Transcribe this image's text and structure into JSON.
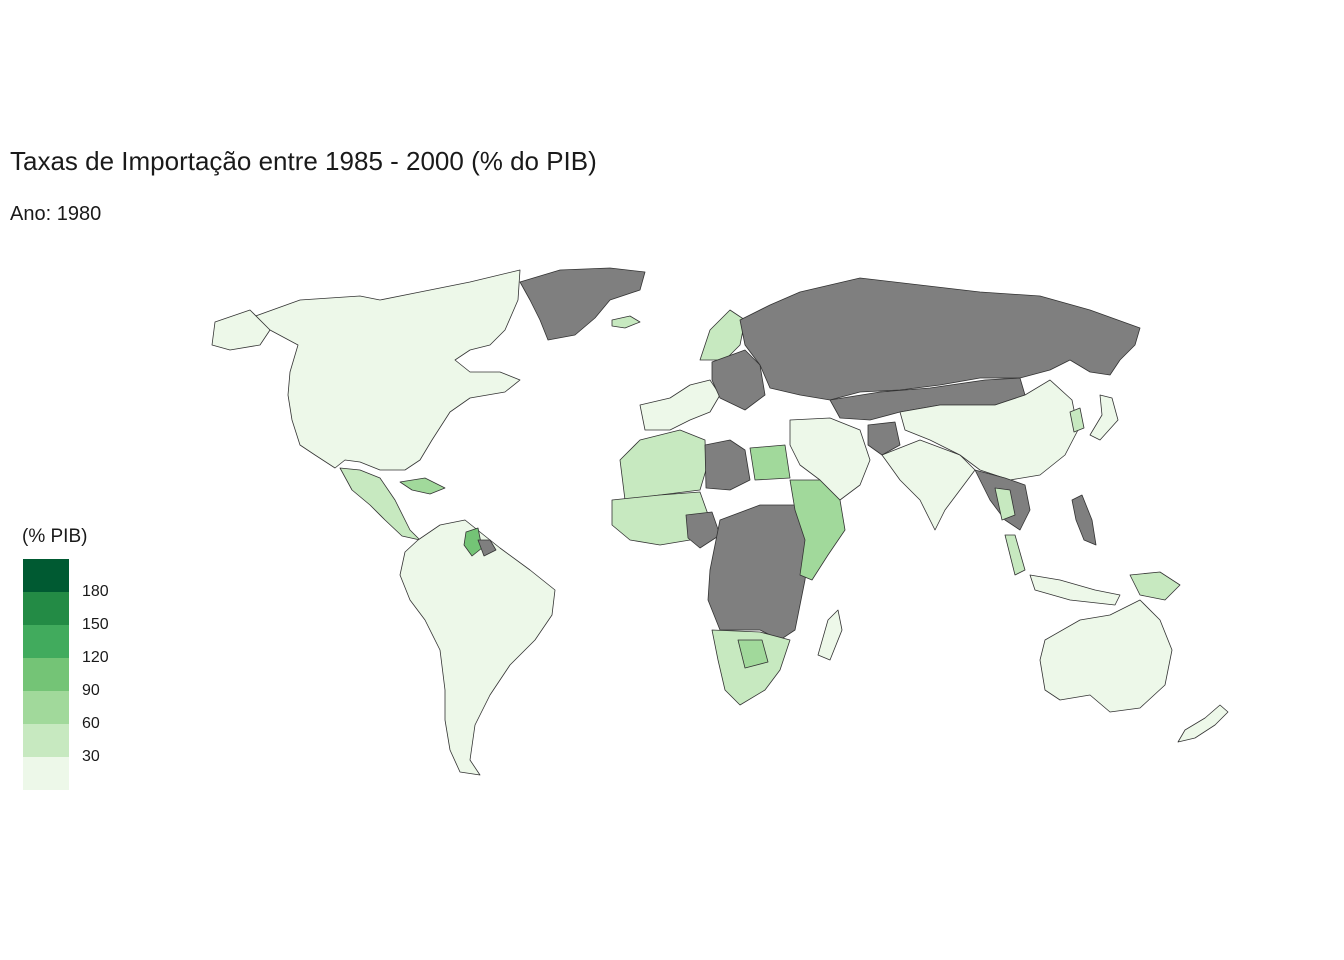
{
  "title": "Taxas de Importação entre 1985 - 2000 (% do PIB)",
  "subtitle": "Ano: 1980",
  "legend": {
    "title": "(% PIB)",
    "bins": [
      {
        "min": 0,
        "max": 30,
        "color": "#edf8e9"
      },
      {
        "min": 30,
        "max": 60,
        "color": "#c7e9c0"
      },
      {
        "min": 60,
        "max": 90,
        "color": "#a1d99b"
      },
      {
        "min": 90,
        "max": 120,
        "color": "#74c476"
      },
      {
        "min": 120,
        "max": 150,
        "color": "#41ab5d"
      },
      {
        "min": 150,
        "max": 180,
        "color": "#238b45"
      },
      {
        "min": 180,
        "max": 210,
        "color": "#005a32"
      }
    ],
    "labels": [
      "180",
      "150",
      "120",
      "90",
      "60",
      "30"
    ],
    "na_color": "#7f7f7f"
  },
  "map_data": {
    "type": "choropleth",
    "variable": "imports_pct_gdp",
    "regions": [
      {
        "id": "north-america",
        "bin": 0
      },
      {
        "id": "alaska",
        "bin": 0
      },
      {
        "id": "greenland",
        "bin": "na"
      },
      {
        "id": "iceland",
        "bin": 1
      },
      {
        "id": "central-america",
        "bin": 1
      },
      {
        "id": "caribbean",
        "bin": 2
      },
      {
        "id": "south-america",
        "bin": 0
      },
      {
        "id": "guyana",
        "bin": 3
      },
      {
        "id": "suriname",
        "bin": "na"
      },
      {
        "id": "western-europe",
        "bin": 0
      },
      {
        "id": "scandinavia",
        "bin": 1
      },
      {
        "id": "eastern-bloc",
        "bin": "na"
      },
      {
        "id": "russia",
        "bin": "na"
      },
      {
        "id": "north-africa",
        "bin": 1
      },
      {
        "id": "libya",
        "bin": "na"
      },
      {
        "id": "egypt",
        "bin": 2
      },
      {
        "id": "west-africa",
        "bin": 1
      },
      {
        "id": "nigeria",
        "bin": "na"
      },
      {
        "id": "central-africa",
        "bin": "na"
      },
      {
        "id": "east-africa",
        "bin": 2
      },
      {
        "id": "southern-africa",
        "bin": 1
      },
      {
        "id": "botswana",
        "bin": 2
      },
      {
        "id": "madagascar",
        "bin": 0
      },
      {
        "id": "middle-east",
        "bin": 0
      },
      {
        "id": "afghanistan",
        "bin": "na"
      },
      {
        "id": "south-asia",
        "bin": 0
      },
      {
        "id": "china",
        "bin": 0
      },
      {
        "id": "mongolia-kazakh",
        "bin": "na"
      },
      {
        "id": "indochina",
        "bin": "na"
      },
      {
        "id": "thailand",
        "bin": 1
      },
      {
        "id": "malaysia",
        "bin": 1
      },
      {
        "id": "indonesia",
        "bin": 0
      },
      {
        "id": "philippines",
        "bin": "na"
      },
      {
        "id": "png",
        "bin": 1
      },
      {
        "id": "japan",
        "bin": 0
      },
      {
        "id": "korea",
        "bin": 1
      },
      {
        "id": "australia",
        "bin": 0
      },
      {
        "id": "new-zealand",
        "bin": 0
      }
    ]
  }
}
